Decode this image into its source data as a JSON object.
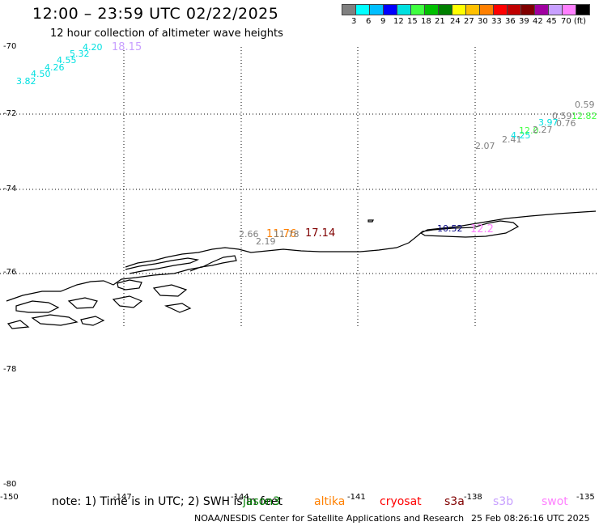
{
  "header": {
    "title": "12:00 – 23:59 UTC 02/22/2025",
    "subtitle": "12 hour collection of altimeter wave heights"
  },
  "legend": {
    "colors": [
      "#808080",
      "#00ffff",
      "#00bfff",
      "#0000ff",
      "#00e0e0",
      "#40ff40",
      "#00c000",
      "#008000",
      "#ffff00",
      "#ffc000",
      "#ff8000",
      "#ff0000",
      "#c00000",
      "#800000",
      "#a000a0",
      "#c8a0ff",
      "#ff80ff",
      "#000000"
    ],
    "labels": [
      "3",
      "6",
      "9",
      "12",
      "15",
      "18",
      "21",
      "24",
      "27",
      "30",
      "33",
      "36",
      "39",
      "42",
      "45",
      "70 (ft)"
    ]
  },
  "axes": {
    "lat_labels": [
      "-70",
      "-72",
      "-74",
      "-76",
      "-78",
      "-80"
    ],
    "lon_labels": [
      "-150",
      "-147",
      "-144",
      "-141",
      "-138",
      "-135"
    ]
  },
  "wave_heights": [
    {
      "text": "3.82",
      "color": "#00e0e0"
    },
    {
      "text": "4.50",
      "color": "#00e0e0"
    },
    {
      "text": "4.26",
      "color": "#00e0e0"
    },
    {
      "text": "4.55",
      "color": "#00e0e0"
    },
    {
      "text": "5.32",
      "color": "#00e0e0"
    },
    {
      "text": "4.20",
      "color": "#00e0e0"
    },
    {
      "text": "18.15",
      "color": "#c8a0ff"
    },
    {
      "text": "2.66",
      "color": "#808080"
    },
    {
      "text": "2.19",
      "color": "#808080"
    },
    {
      "text": "11.76",
      "color": "#ff8000"
    },
    {
      "text": "11.78",
      "color": "#808080"
    },
    {
      "text": "17.14",
      "color": "#800000"
    },
    {
      "text": "10.52",
      "color": "#000080"
    },
    {
      "text": "12.2",
      "color": "#ff80ff"
    },
    {
      "text": "2.07",
      "color": "#808080"
    },
    {
      "text": "2.41",
      "color": "#808080"
    },
    {
      "text": "4.25",
      "color": "#00e0e0"
    },
    {
      "text": "12.0",
      "color": "#40ff40"
    },
    {
      "text": "2.27",
      "color": "#808080"
    },
    {
      "text": "3.97",
      "color": "#00e0e0"
    },
    {
      "text": "0.76",
      "color": "#808080"
    },
    {
      "text": "0.59",
      "color": "#808080"
    },
    {
      "text": "12.82",
      "color": "#40ff40"
    },
    {
      "text": "0.59",
      "color": "#808080"
    }
  ],
  "note": "note: 1) Time is in UTC; 2) SWH is in feet",
  "satellites": [
    {
      "name": "jason3",
      "color": "#008000"
    },
    {
      "name": "altika",
      "color": "#ff8000"
    },
    {
      "name": "cryosat",
      "color": "#ff0000"
    },
    {
      "name": "s3a",
      "color": "#800000"
    },
    {
      "name": "s3b",
      "color": "#c8a0ff"
    },
    {
      "name": "swot",
      "color": "#ff80ff"
    }
  ],
  "footer": {
    "credit": "NOAA/NESDIS Center for Satellite Applications and Research",
    "timestamp": "25 Feb 08:26:16 UTC 2025"
  }
}
